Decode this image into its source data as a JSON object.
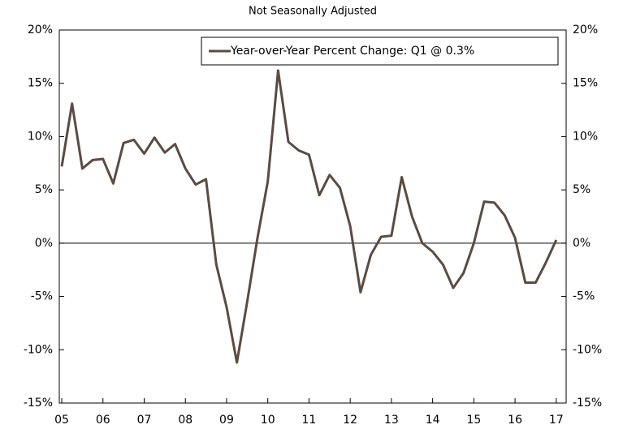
{
  "chart_data": {
    "type": "line",
    "subtitle": "Not Seasonally Adjusted",
    "x": [
      2005,
      2005.25,
      2005.5,
      2005.75,
      2006,
      2006.25,
      2006.5,
      2006.75,
      2007,
      2007.25,
      2007.5,
      2007.75,
      2008,
      2008.25,
      2008.5,
      2008.75,
      2009,
      2009.25,
      2009.5,
      2009.75,
      2010,
      2010.25,
      2010.5,
      2010.75,
      2011,
      2011.25,
      2011.5,
      2011.75,
      2012,
      2012.25,
      2012.5,
      2012.75,
      2013,
      2013.25,
      2013.5,
      2013.75,
      2014,
      2014.25,
      2014.5,
      2014.75,
      2015,
      2015.25,
      2015.5,
      2015.75,
      2016,
      2016.25,
      2016.5,
      2016.75,
      2017
    ],
    "series": [
      {
        "name": "Year-over-Year Percent Change: Q1 @ 0.3%",
        "color": "#5b4b40",
        "values": [
          7.2,
          13.1,
          7.0,
          7.8,
          7.9,
          5.6,
          9.4,
          9.7,
          8.4,
          9.9,
          8.5,
          9.3,
          7.0,
          5.5,
          6.0,
          -2.0,
          -6.0,
          -11.2,
          -5.5,
          0.5,
          5.8,
          16.2,
          9.5,
          8.7,
          8.3,
          4.5,
          6.4,
          5.2,
          1.6,
          -4.6,
          -1.1,
          0.6,
          0.7,
          6.2,
          2.5,
          0.0,
          -0.8,
          -2.0,
          -4.2,
          -2.8,
          0.0,
          3.9,
          3.8,
          2.6,
          0.5,
          -3.7,
          -3.7,
          -1.8,
          0.3
        ]
      }
    ],
    "xlim": [
      2004.94,
      2017.24
    ],
    "xticks": [
      {
        "value": 2005,
        "label": "05"
      },
      {
        "value": 2006,
        "label": "06"
      },
      {
        "value": 2007,
        "label": "07"
      },
      {
        "value": 2008,
        "label": "08"
      },
      {
        "value": 2009,
        "label": "09"
      },
      {
        "value": 2010,
        "label": "10"
      },
      {
        "value": 2011,
        "label": "11"
      },
      {
        "value": 2012,
        "label": "12"
      },
      {
        "value": 2013,
        "label": "13"
      },
      {
        "value": 2014,
        "label": "14"
      },
      {
        "value": 2015,
        "label": "15"
      },
      {
        "value": 2016,
        "label": "16"
      },
      {
        "value": 2017,
        "label": "17"
      }
    ],
    "ylim": [
      -15,
      20
    ],
    "yticks": [
      {
        "value": -15,
        "label": "-15%"
      },
      {
        "value": -10,
        "label": "-10%"
      },
      {
        "value": -5,
        "label": "-5%"
      },
      {
        "value": 0,
        "label": "0%"
      },
      {
        "value": 5,
        "label": "5%"
      },
      {
        "value": 10,
        "label": "10%"
      },
      {
        "value": 15,
        "label": "15%"
      },
      {
        "value": 20,
        "label": "20%"
      }
    ],
    "y2lim": [
      -15,
      20
    ],
    "y2ticks": [
      {
        "value": -15,
        "label": "-15%"
      },
      {
        "value": -10,
        "label": "-10%"
      },
      {
        "value": -5,
        "label": "-5%"
      },
      {
        "value": 0,
        "label": "0%"
      },
      {
        "value": 5,
        "label": "5%"
      },
      {
        "value": 10,
        "label": "10%"
      },
      {
        "value": 15,
        "label": "15%"
      },
      {
        "value": 20,
        "label": "20%"
      }
    ],
    "legend": "upper right"
  }
}
